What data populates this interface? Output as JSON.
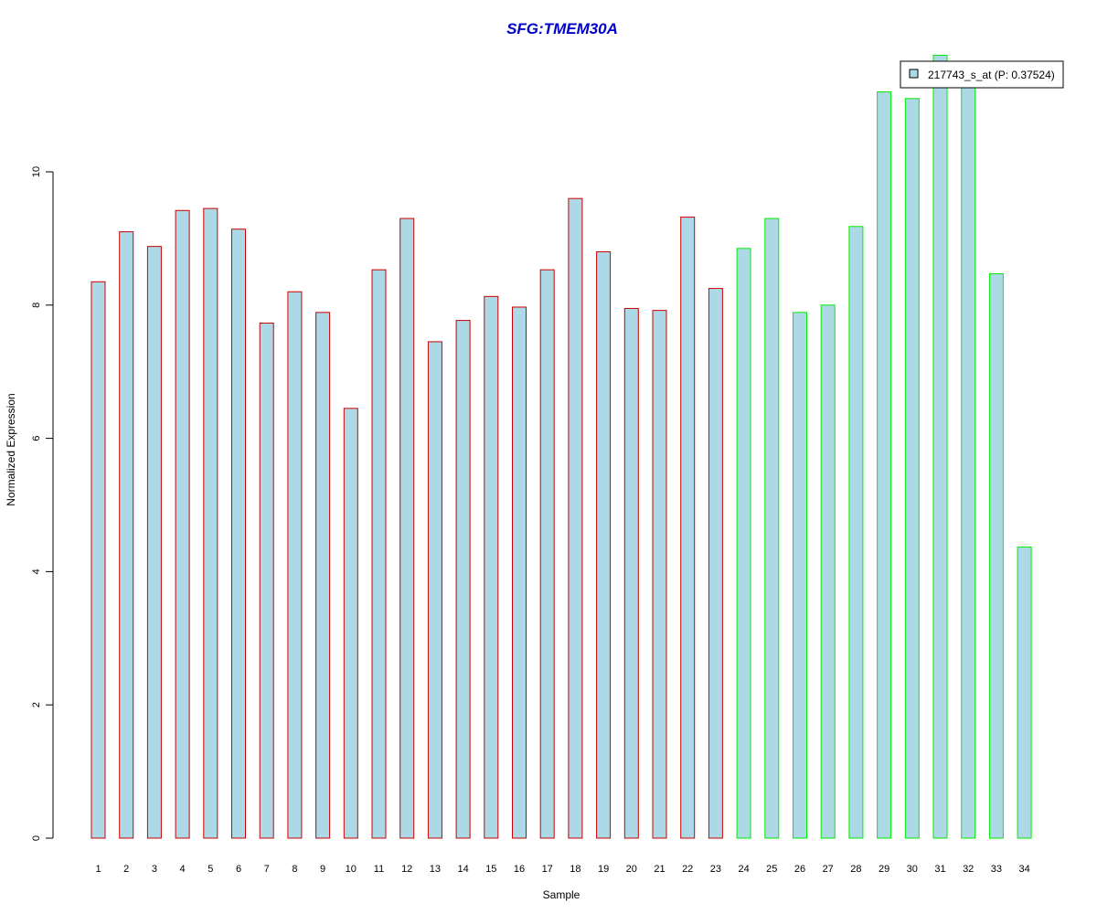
{
  "chart_data": {
    "type": "bar",
    "title": "SFG:TMEM30A",
    "xlabel": "Sample",
    "ylabel": "Normalized Expression",
    "ylim": [
      0,
      11.8
    ],
    "yticks": [
      0,
      2,
      4,
      6,
      8,
      10
    ],
    "grid": false,
    "legend_position": "top-right",
    "categories": [
      "1",
      "2",
      "3",
      "4",
      "5",
      "6",
      "7",
      "8",
      "9",
      "10",
      "11",
      "12",
      "13",
      "14",
      "15",
      "16",
      "17",
      "18",
      "19",
      "20",
      "21",
      "22",
      "23",
      "24",
      "25",
      "26",
      "27",
      "28",
      "29",
      "30",
      "31",
      "32",
      "33",
      "34"
    ],
    "series": [
      {
        "name": "217743_s_at (P: 0.37524)",
        "values": [
          8.35,
          9.1,
          8.88,
          9.42,
          9.45,
          9.14,
          7.73,
          8.2,
          7.89,
          6.45,
          8.53,
          9.3,
          7.45,
          7.77,
          8.13,
          7.97,
          8.53,
          9.6,
          8.8,
          7.95,
          7.92,
          9.32,
          8.25,
          8.85,
          9.3,
          7.89,
          8.0,
          9.18,
          11.2,
          11.1,
          11.75,
          11.3,
          8.47,
          4.37
        ]
      }
    ],
    "group_border_colors": [
      "#cc0000",
      "#cc0000",
      "#cc0000",
      "#cc0000",
      "#cc0000",
      "#cc0000",
      "#cc0000",
      "#cc0000",
      "#cc0000",
      "#cc0000",
      "#cc0000",
      "#cc0000",
      "#cc0000",
      "#cc0000",
      "#cc0000",
      "#cc0000",
      "#cc0000",
      "#cc0000",
      "#cc0000",
      "#cc0000",
      "#cc0000",
      "#cc0000",
      "#cc0000",
      "#00ee00",
      "#00ee00",
      "#00ee00",
      "#00ee00",
      "#00ee00",
      "#00ee00",
      "#00ee00",
      "#00ee00",
      "#00ee00",
      "#00ee00",
      "#00ee00"
    ],
    "bar_fill_color": "#add8e6",
    "title_color": "#0000cc"
  }
}
